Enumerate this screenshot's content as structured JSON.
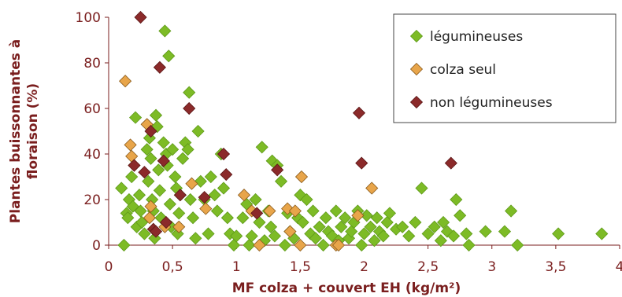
{
  "chart_data": {
    "type": "scatter",
    "title": "",
    "xlabel": "MF colza + couvert  EH (kg/m²)",
    "ylabel_lines": [
      "Plantes buissonnantes à",
      "floraison (%)"
    ],
    "xlim": [
      0,
      4
    ],
    "ylim": [
      0,
      100
    ],
    "x_ticks": [
      0,
      0.5,
      1,
      1.5,
      2,
      2.5,
      3,
      3.5,
      4
    ],
    "x_tick_labels": [
      "0",
      "0,5",
      "1",
      "1,5",
      "2",
      "2,5",
      "3",
      "3,5",
      "4"
    ],
    "y_ticks": [
      0,
      20,
      40,
      60,
      80,
      100
    ],
    "y_tick_labels": [
      "0",
      "20",
      "40",
      "60",
      "80",
      "100"
    ],
    "grid": false,
    "legend_position": "top-right",
    "axis_color": "#7a1e1e",
    "series": [
      {
        "name": "légumineuses",
        "marker": "diamond",
        "fill": "#7dbb26",
        "stroke": "#5e9a18",
        "points": [
          [
            0.1,
            25
          ],
          [
            0.12,
            0
          ],
          [
            0.14,
            14
          ],
          [
            0.15,
            12
          ],
          [
            0.16,
            20
          ],
          [
            0.18,
            30
          ],
          [
            0.19,
            17
          ],
          [
            0.21,
            56
          ],
          [
            0.22,
            8
          ],
          [
            0.24,
            22
          ],
          [
            0.25,
            15
          ],
          [
            0.26,
            10
          ],
          [
            0.28,
            5
          ],
          [
            0.3,
            42
          ],
          [
            0.31,
            28
          ],
          [
            0.32,
            47
          ],
          [
            0.33,
            38
          ],
          [
            0.34,
            20
          ],
          [
            0.35,
            15
          ],
          [
            0.36,
            3
          ],
          [
            0.37,
            57
          ],
          [
            0.38,
            52
          ],
          [
            0.39,
            33
          ],
          [
            0.4,
            24
          ],
          [
            0.41,
            12
          ],
          [
            0.43,
            45
          ],
          [
            0.44,
            94
          ],
          [
            0.45,
            40
          ],
          [
            0.46,
            35
          ],
          [
            0.47,
            83
          ],
          [
            0.48,
            18
          ],
          [
            0.49,
            8
          ],
          [
            0.5,
            42
          ],
          [
            0.52,
            30
          ],
          [
            0.53,
            25
          ],
          [
            0.54,
            5
          ],
          [
            0.55,
            14
          ],
          [
            0.56,
            22
          ],
          [
            0.58,
            38
          ],
          [
            0.6,
            45
          ],
          [
            0.62,
            42
          ],
          [
            0.63,
            67
          ],
          [
            0.64,
            20
          ],
          [
            0.66,
            12
          ],
          [
            0.68,
            3
          ],
          [
            0.7,
            50
          ],
          [
            0.72,
            28
          ],
          [
            0.75,
            20
          ],
          [
            0.78,
            5
          ],
          [
            0.8,
            30
          ],
          [
            0.83,
            22
          ],
          [
            0.85,
            15
          ],
          [
            0.88,
            40
          ],
          [
            0.9,
            25
          ],
          [
            0.93,
            12
          ],
          [
            0.95,
            5
          ],
          [
            0.98,
            0
          ],
          [
            1.0,
            4
          ],
          [
            1.05,
            12
          ],
          [
            1.08,
            18
          ],
          [
            1.1,
            0
          ],
          [
            1.12,
            4
          ],
          [
            1.15,
            20
          ],
          [
            1.18,
            10
          ],
          [
            1.2,
            43
          ],
          [
            1.22,
            2
          ],
          [
            1.25,
            15
          ],
          [
            1.27,
            8
          ],
          [
            1.28,
            37
          ],
          [
            1.3,
            4
          ],
          [
            1.32,
            35
          ],
          [
            1.35,
            28
          ],
          [
            1.38,
            0
          ],
          [
            1.4,
            14
          ],
          [
            1.42,
            6
          ],
          [
            1.45,
            3
          ],
          [
            1.48,
            12
          ],
          [
            1.5,
            22
          ],
          [
            1.52,
            10
          ],
          [
            1.55,
            20
          ],
          [
            1.58,
            5
          ],
          [
            1.6,
            15
          ],
          [
            1.62,
            3
          ],
          [
            1.65,
            8
          ],
          [
            1.68,
            0
          ],
          [
            1.7,
            12
          ],
          [
            1.72,
            6
          ],
          [
            1.75,
            4
          ],
          [
            1.78,
            15
          ],
          [
            1.8,
            2
          ],
          [
            1.82,
            8
          ],
          [
            1.85,
            12
          ],
          [
            1.88,
            3
          ],
          [
            1.9,
            6
          ],
          [
            1.92,
            10
          ],
          [
            1.95,
            15
          ],
          [
            1.98,
            0
          ],
          [
            2.0,
            5
          ],
          [
            2.02,
            13
          ],
          [
            2.05,
            8
          ],
          [
            2.08,
            2
          ],
          [
            2.1,
            12
          ],
          [
            2.12,
            6
          ],
          [
            2.15,
            4
          ],
          [
            2.18,
            10
          ],
          [
            2.2,
            14
          ],
          [
            2.25,
            7
          ],
          [
            2.3,
            8
          ],
          [
            2.35,
            4
          ],
          [
            2.4,
            10
          ],
          [
            2.45,
            25
          ],
          [
            2.5,
            5
          ],
          [
            2.55,
            8
          ],
          [
            2.6,
            2
          ],
          [
            2.62,
            10
          ],
          [
            2.65,
            6
          ],
          [
            2.7,
            4
          ],
          [
            2.72,
            20
          ],
          [
            2.75,
            13
          ],
          [
            2.8,
            5
          ],
          [
            2.82,
            0
          ],
          [
            2.95,
            6
          ],
          [
            3.1,
            6
          ],
          [
            3.15,
            15
          ],
          [
            3.2,
            0
          ],
          [
            3.52,
            5
          ],
          [
            3.86,
            5
          ]
        ]
      },
      {
        "name": "colza seul",
        "marker": "diamond",
        "fill": "#e8a54a",
        "stroke": "#8a5a1a",
        "points": [
          [
            0.13,
            72
          ],
          [
            0.17,
            44
          ],
          [
            0.18,
            39
          ],
          [
            0.2,
            35
          ],
          [
            0.3,
            53
          ],
          [
            0.32,
            12
          ],
          [
            0.33,
            17
          ],
          [
            0.44,
            8
          ],
          [
            0.55,
            8
          ],
          [
            0.65,
            27
          ],
          [
            0.76,
            16
          ],
          [
            1.06,
            22
          ],
          [
            1.12,
            15
          ],
          [
            1.18,
            0
          ],
          [
            1.26,
            15
          ],
          [
            1.4,
            16
          ],
          [
            1.42,
            6
          ],
          [
            1.46,
            15
          ],
          [
            1.5,
            0
          ],
          [
            1.51,
            30
          ],
          [
            1.78,
            0
          ],
          [
            1.8,
            0
          ],
          [
            1.95,
            13
          ],
          [
            2.06,
            25
          ]
        ]
      },
      {
        "name": "non légumineuses",
        "marker": "diamond",
        "fill": "#8b2a2a",
        "stroke": "#5a1616",
        "points": [
          [
            0.2,
            35
          ],
          [
            0.25,
            100
          ],
          [
            0.28,
            32
          ],
          [
            0.33,
            50
          ],
          [
            0.35,
            7
          ],
          [
            0.37,
            6
          ],
          [
            0.4,
            78
          ],
          [
            0.43,
            37
          ],
          [
            0.45,
            10
          ],
          [
            0.56,
            22
          ],
          [
            0.63,
            60
          ],
          [
            0.75,
            21
          ],
          [
            0.9,
            40
          ],
          [
            0.92,
            31
          ],
          [
            1.16,
            14
          ],
          [
            1.32,
            33
          ],
          [
            1.96,
            58
          ],
          [
            1.98,
            36
          ],
          [
            2.68,
            36
          ]
        ]
      }
    ]
  }
}
